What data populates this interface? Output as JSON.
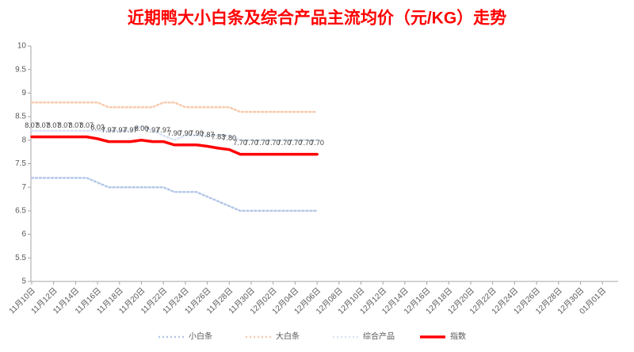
{
  "chart_data": {
    "type": "line",
    "title": "近期鸭大小白条及综合产品主流均价（元/KG）走势",
    "categories": [
      "11月10日",
      null,
      "11月12日",
      null,
      "11月14日",
      null,
      "11月16日",
      null,
      "11月18日",
      null,
      "11月20日",
      null,
      "11月22日",
      null,
      "11月24日",
      null,
      "11月26日",
      null,
      "11月28日",
      null,
      "11月30日",
      null,
      "12月02日",
      null,
      "12月04日",
      null,
      "12月06日",
      null,
      "12月08日",
      null,
      "12月10日",
      null,
      "12月12日",
      null,
      "12月14日",
      null,
      "12月16日",
      null,
      "12月18日",
      null,
      "12月20日",
      null,
      "12月22日",
      null,
      "12月24日",
      null,
      "12月26日",
      null,
      "12月28日",
      null,
      "12月30日",
      null,
      "01月01日"
    ],
    "series": [
      {
        "name": "小白条",
        "color": "#b4c7e7",
        "values": [
          7.2,
          7.2,
          7.2,
          7.2,
          7.2,
          7.2,
          7.1,
          7.0,
          7.0,
          7.0,
          7.0,
          7.0,
          7.0,
          6.9,
          6.9,
          6.9,
          6.8,
          6.7,
          6.6,
          6.5,
          6.5,
          6.5,
          6.5,
          6.5,
          6.5,
          6.5,
          6.5,
          null,
          null,
          null,
          null,
          null,
          null,
          null,
          null,
          null,
          null,
          null,
          null,
          null,
          null,
          null,
          null,
          null,
          null,
          null,
          null,
          null,
          null,
          null,
          null,
          null,
          null
        ]
      },
      {
        "name": "大白条",
        "color": "#f8cbad",
        "values": [
          8.8,
          8.8,
          8.8,
          8.8,
          8.8,
          8.8,
          8.8,
          8.7,
          8.7,
          8.7,
          8.7,
          8.7,
          8.8,
          8.8,
          8.7,
          8.7,
          8.7,
          8.7,
          8.7,
          8.6,
          8.6,
          8.6,
          8.6,
          8.6,
          8.6,
          8.6,
          8.6,
          null,
          null,
          null,
          null,
          null,
          null,
          null,
          null,
          null,
          null,
          null,
          null,
          null,
          null,
          null,
          null,
          null,
          null,
          null,
          null,
          null,
          null,
          null,
          null,
          null,
          null
        ]
      },
      {
        "name": "综合产品",
        "color": "#dae3f3",
        "values": [
          8.2,
          8.2,
          8.2,
          8.2,
          8.2,
          8.2,
          8.2,
          8.2,
          8.2,
          8.2,
          8.3,
          8.2,
          8.1,
          8.0,
          8.1,
          8.1,
          8.1,
          8.1,
          8.1,
          8.0,
          8.0,
          8.0,
          8.0,
          8.0,
          8.0,
          8.0,
          8.0,
          null,
          null,
          null,
          null,
          null,
          null,
          null,
          null,
          null,
          null,
          null,
          null,
          null,
          null,
          null,
          null,
          null,
          null,
          null,
          null,
          null,
          null,
          null,
          null,
          null,
          null
        ]
      },
      {
        "name": "指数",
        "color": "#ff0000",
        "values": [
          8.07,
          8.07,
          8.07,
          8.07,
          8.07,
          8.07,
          8.03,
          7.97,
          7.97,
          7.97,
          8.0,
          7.97,
          7.97,
          7.9,
          7.9,
          7.9,
          7.87,
          7.83,
          7.8,
          7.7,
          7.7,
          7.7,
          7.7,
          7.7,
          7.7,
          7.7,
          7.7,
          null,
          null,
          null,
          null,
          null,
          null,
          null,
          null,
          null,
          null,
          null,
          null,
          null,
          null,
          null,
          null,
          null,
          null,
          null,
          null,
          null,
          null,
          null,
          null,
          null,
          null
        ],
        "value_labels": [
          "8.07",
          "8.07",
          "8.07",
          "8.07",
          "8.07",
          "8.07",
          "8.03",
          "7.97",
          "7.97",
          "7.97",
          "8.00",
          "7.97",
          "7.97",
          "7.90",
          "7.90",
          "7.90",
          "7.87",
          "7.83",
          "7.80",
          "7.70",
          "7.70",
          "7.70",
          "7.70",
          "7.70",
          "7.70",
          "7.70",
          "7.70",
          null,
          null,
          null,
          null,
          null,
          null,
          null,
          null,
          null,
          null,
          null,
          null,
          null,
          null,
          null,
          null,
          null,
          null,
          null,
          null,
          null,
          null,
          null,
          null,
          null,
          null
        ]
      }
    ],
    "ylim": [
      5,
      10
    ],
    "yticks": [
      5,
      5.5,
      6,
      6.5,
      7,
      7.5,
      8,
      8.5,
      9,
      9.5,
      10
    ],
    "grid": false,
    "legend": "bottom"
  }
}
